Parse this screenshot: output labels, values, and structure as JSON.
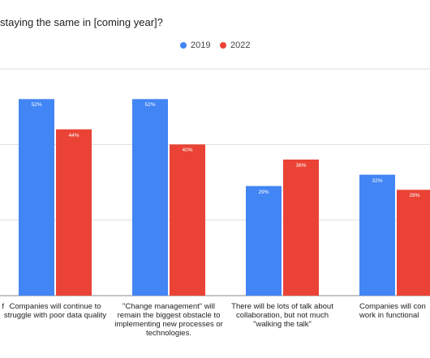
{
  "chart_data": {
    "type": "bar",
    "title": "staying the same in [coming year]?",
    "categories": [
      "f",
      "Companies will continue to struggle with poor data quality",
      "\"Change management\" will remain the biggest obstacle to implementing new processes or technologies.",
      "There will be lots of talk about collaboration, but not much \"walking the talk\"",
      "Companies will con work in functional"
    ],
    "series": [
      {
        "name": "2019",
        "color": "#4285f4",
        "values": [
          null,
          52,
          52,
          29,
          32
        ],
        "labels": [
          "",
          "52%",
          "52%",
          "29%",
          "32%"
        ]
      },
      {
        "name": "2022",
        "color": "#ea4335",
        "values": [
          null,
          44,
          40,
          36,
          28
        ],
        "labels": [
          "",
          "44%",
          "40%",
          "36%",
          "28%"
        ]
      }
    ],
    "ylim": [
      0,
      60
    ],
    "grid": true,
    "legend_position": "top"
  }
}
